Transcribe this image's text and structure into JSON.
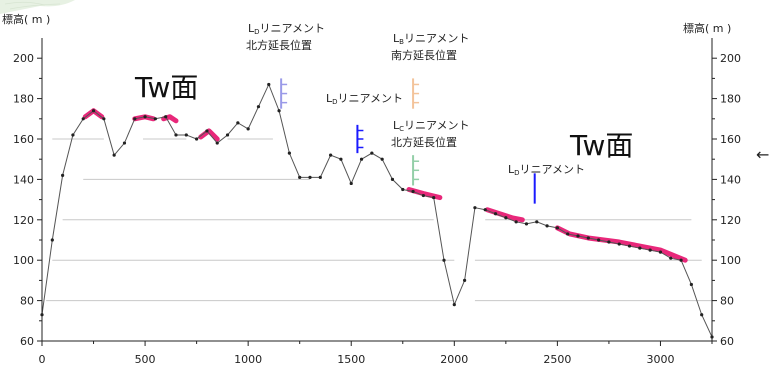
{
  "axis_label": "標高( m )",
  "surface_label": "Tw面",
  "arrow_glyph": "←",
  "colors": {
    "profile": "#555555",
    "terrace": "#e8287a",
    "lineament_b": "#f3c39a",
    "lineament_c": "#93cfa8",
    "lineament_d_light": "#9a9ae8",
    "lineament_d": "#1a1aff"
  },
  "annotations": [
    {
      "prefix": "L",
      "sub": "D",
      "suffix": "リニアメント",
      "line2": "北方延長位置"
    },
    {
      "prefix": "L",
      "sub": "B",
      "suffix": "リニアメント",
      "line2": "南方延長位置"
    },
    {
      "prefix": "L",
      "sub": "D",
      "suffix": "リニアメント",
      "line2": ""
    },
    {
      "prefix": "L",
      "sub": "C",
      "suffix": "リニアメント",
      "line2": "北方延長位置"
    },
    {
      "prefix": "L",
      "sub": "D",
      "suffix": "リニアメント",
      "line2": ""
    }
  ],
  "chart_data": {
    "type": "line",
    "xlabel": "",
    "ylabel": "標高( m )",
    "xlim": [
      0,
      3250
    ],
    "ylim": [
      60,
      210
    ],
    "xticks": [
      0,
      500,
      1000,
      1500,
      2000,
      2500,
      3000
    ],
    "yticks": [
      60,
      80,
      100,
      120,
      140,
      160,
      180,
      200
    ],
    "profile": {
      "x": [
        0,
        50,
        100,
        150,
        200,
        250,
        300,
        350,
        400,
        450,
        500,
        550,
        600,
        650,
        700,
        750,
        800,
        850,
        900,
        950,
        1000,
        1050,
        1100,
        1150,
        1200,
        1250,
        1300,
        1350,
        1400,
        1450,
        1500,
        1550,
        1600,
        1650,
        1700,
        1750,
        1800,
        1850,
        1900,
        1950,
        2000,
        2050,
        2100,
        2150,
        2200,
        2250,
        2300,
        2350,
        2400,
        2450,
        2500,
        2550,
        2600,
        2650,
        2700,
        2750,
        2800,
        2850,
        2900,
        2950,
        3000,
        3050,
        3100,
        3150,
        3200,
        3250
      ],
      "y": [
        73,
        110,
        142,
        162,
        170,
        174,
        170,
        152,
        158,
        170,
        171,
        170,
        171,
        162,
        162,
        160,
        164,
        158,
        162,
        168,
        165,
        176,
        187,
        174,
        153,
        141,
        141,
        141,
        152,
        150,
        138,
        150,
        153,
        150,
        140,
        135,
        134,
        132,
        131,
        100,
        78,
        90,
        126,
        125,
        123,
        121,
        119,
        118,
        119,
        117,
        116,
        113,
        112,
        111,
        110,
        109,
        108,
        107,
        106,
        105,
        104,
        101,
        100,
        88,
        73,
        62
      ]
    },
    "terraces": [
      {
        "x": [
          210,
          250,
          290
        ],
        "y": [
          171,
          174,
          171
        ]
      },
      {
        "x": [
          450,
          500,
          540
        ],
        "y": [
          170,
          171,
          170
        ]
      },
      {
        "x": [
          590,
          620,
          650
        ],
        "y": [
          170,
          171,
          169
        ]
      },
      {
        "x": [
          770,
          810,
          850
        ],
        "y": [
          161,
          164,
          160
        ]
      },
      {
        "x": [
          1780,
          1850,
          1930
        ],
        "y": [
          135,
          133,
          131
        ]
      },
      {
        "x": [
          2160,
          2220,
          2280,
          2330
        ],
        "y": [
          125,
          123,
          121,
          120
        ]
      },
      {
        "x": [
          2500,
          2560,
          2650,
          2800,
          3000,
          3120
        ],
        "y": [
          116,
          113,
          111,
          109,
          105,
          100
        ]
      }
    ],
    "reference_lines": [
      {
        "x": [
          50,
          300
        ],
        "y": 160
      },
      {
        "x": [
          490,
          700
        ],
        "y": 160
      },
      {
        "x": [
          900,
          1120
        ],
        "y": 160
      },
      {
        "x": [
          200,
          1300
        ],
        "y": 140
      },
      {
        "x": [
          100,
          1900
        ],
        "y": 120
      },
      {
        "x": [
          2150,
          3150
        ],
        "y": 120
      },
      {
        "x": [
          50,
          2000
        ],
        "y": 100
      },
      {
        "x": [
          2100,
          3200
        ],
        "y": 100
      },
      {
        "x": [
          20,
          2000
        ],
        "y": 80
      },
      {
        "x": [
          2100,
          3250
        ],
        "y": 80
      }
    ],
    "markers": [
      {
        "type": "comb",
        "x": 1160,
        "y_top": 190,
        "y_bottom": 175,
        "color": "lineament_d_light"
      },
      {
        "type": "comb",
        "x": 1800,
        "y_top": 190,
        "y_bottom": 175,
        "color": "lineament_b"
      },
      {
        "type": "comb",
        "x": 1530,
        "y_top": 167,
        "y_bottom": 153,
        "color": "lineament_d"
      },
      {
        "type": "comb",
        "x": 1800,
        "y_top": 152,
        "y_bottom": 137,
        "color": "lineament_c"
      },
      {
        "type": "line",
        "x": 2390,
        "y_top": 143,
        "y_bottom": 128,
        "color": "lineament_d"
      }
    ]
  }
}
